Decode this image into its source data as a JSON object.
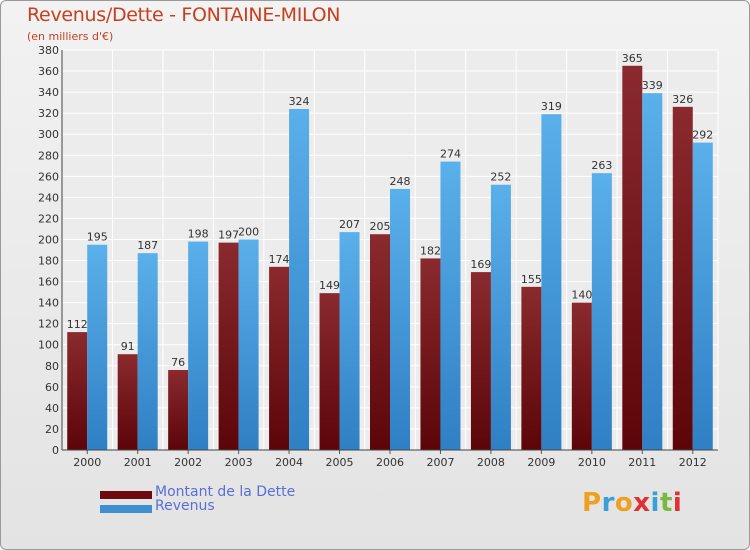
{
  "title": "Revenus/Dette - FONTAINE-MILON",
  "subtitle": "(en milliers d'€)",
  "colors": {
    "debt": "#6e0b10",
    "revenue": "#3f8fd0",
    "title": "#c6401f",
    "legend_text": "#5a6fd6"
  },
  "legend": {
    "debt_label": "Montant de la Dette",
    "revenue_label": "Revenus"
  },
  "logo": {
    "letters": [
      "P",
      "r",
      "o",
      "x",
      "i",
      "t",
      "i"
    ],
    "colors": [
      "#f0a020",
      "#3aa0d8",
      "#f0a020",
      "#e03030",
      "#3aa0d8",
      "#78b843",
      "#e03030"
    ]
  },
  "chart_data": {
    "type": "bar",
    "title": "Revenus/Dette - FONTAINE-MILON",
    "subtitle": "(en milliers d'€)",
    "categories": [
      "2000",
      "2001",
      "2002",
      "2003",
      "2004",
      "2005",
      "2006",
      "2007",
      "2008",
      "2009",
      "2010",
      "2011",
      "2012"
    ],
    "series": [
      {
        "name": "Montant de la Dette",
        "values": [
          112,
          91,
          76,
          197,
          174,
          149,
          205,
          182,
          169,
          155,
          140,
          365,
          326
        ]
      },
      {
        "name": "Revenus",
        "values": [
          195,
          187,
          198,
          200,
          324,
          207,
          248,
          274,
          252,
          319,
          263,
          339,
          292
        ]
      }
    ],
    "ylim": [
      0,
      380
    ],
    "ytick_step": 20,
    "grid": true,
    "legend_position": "bottom-left"
  }
}
